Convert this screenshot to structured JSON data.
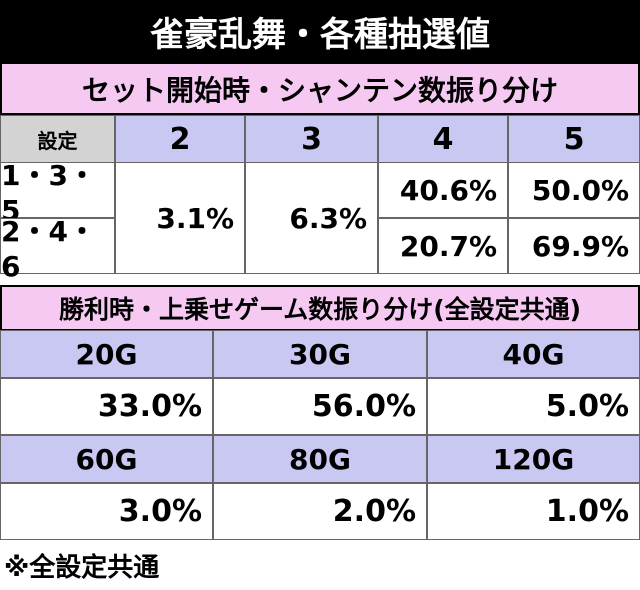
{
  "title": "雀豪乱舞・各種抽選値",
  "section1": {
    "title": "セット開始時・シャンテン数振り分け",
    "header": [
      "設定",
      "2",
      "3",
      "4",
      "5"
    ],
    "merged": [
      "3.1%",
      "6.3%"
    ],
    "rows": [
      {
        "label": "1・3・5",
        "values": [
          "40.6%",
          "50.0%"
        ]
      },
      {
        "label": "2・4・6",
        "values": [
          "20.7%",
          "69.9%"
        ]
      }
    ]
  },
  "section2": {
    "title": "勝利時・上乗せゲーム数振り分け(全設定共通)",
    "items": [
      {
        "label": "20G",
        "value": "33.0%"
      },
      {
        "label": "30G",
        "value": "56.0%"
      },
      {
        "label": "40G",
        "value": "5.0%"
      },
      {
        "label": "60G",
        "value": "3.0%"
      },
      {
        "label": "80G",
        "value": "2.0%"
      },
      {
        "label": "120G",
        "value": "1.0%"
      }
    ]
  },
  "footer": "※全設定共通"
}
